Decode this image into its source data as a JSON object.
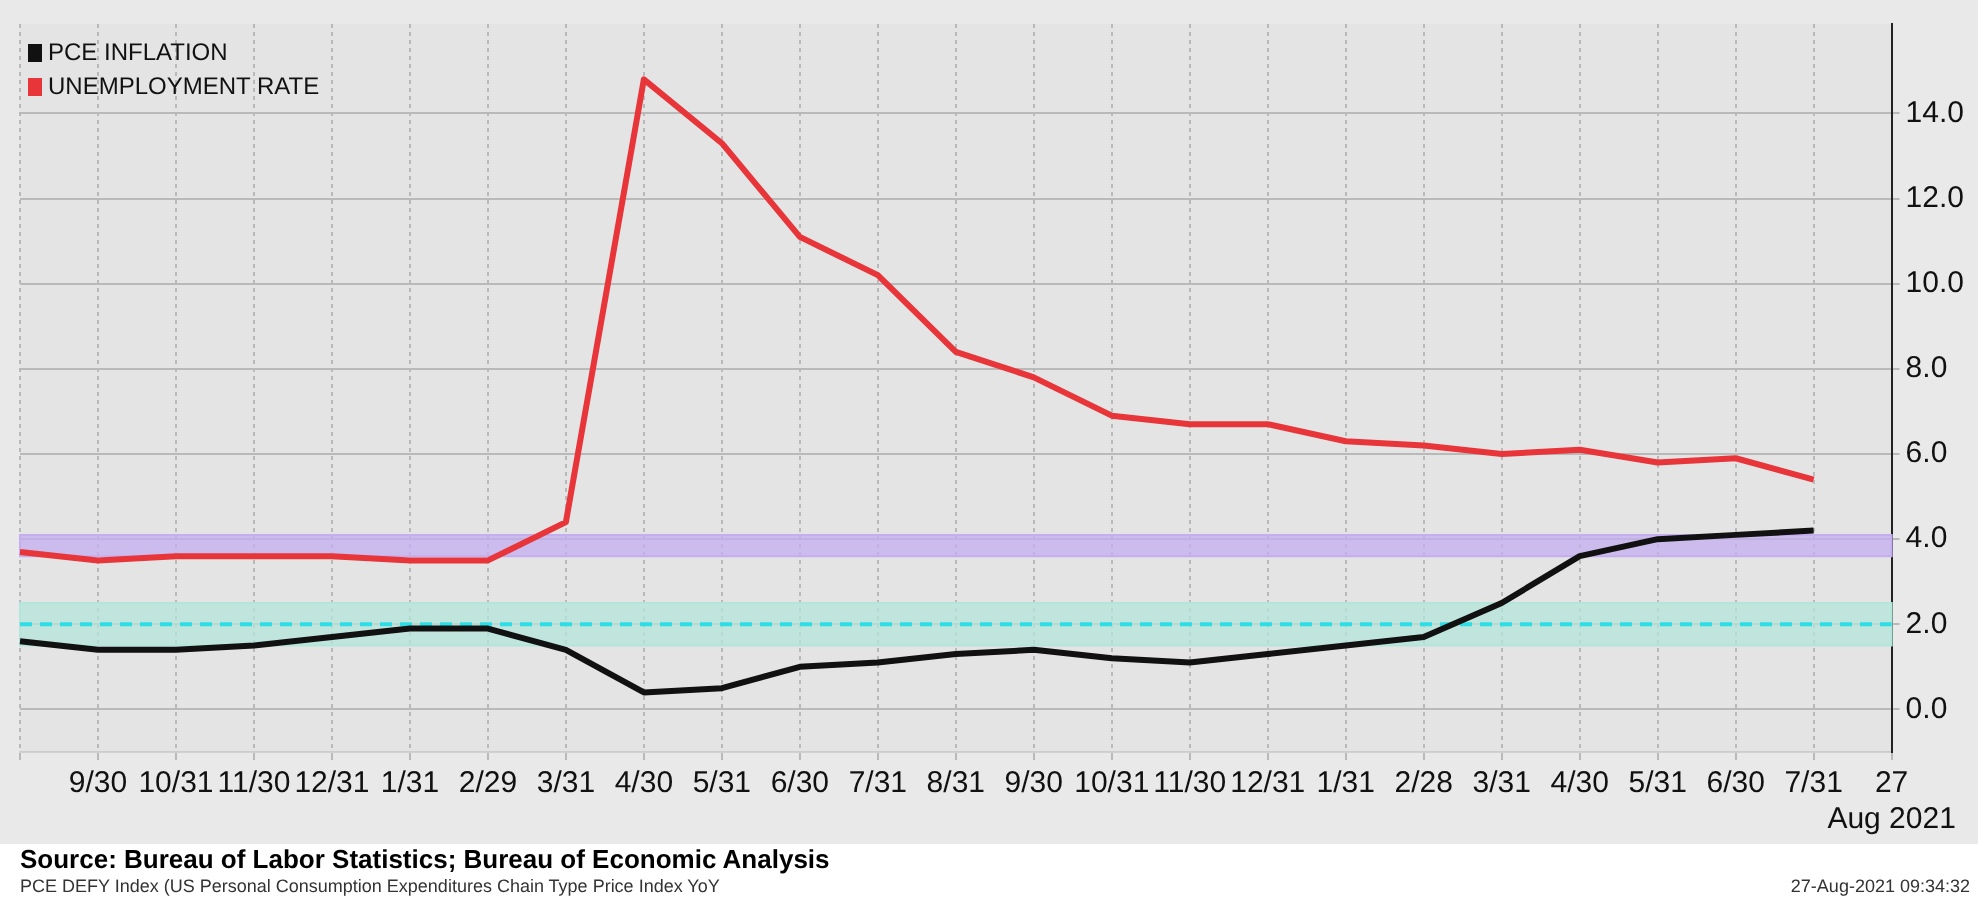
{
  "chart_data": {
    "type": "line",
    "categories": [
      null,
      "9/30",
      "10/31",
      "11/30",
      "12/31",
      "1/31",
      "2/29",
      "3/31",
      "4/30",
      "5/31",
      "6/30",
      "7/31",
      "8/31",
      "9/30",
      "10/31",
      "11/30",
      "12/31",
      "1/31",
      "2/28",
      "3/31",
      "4/30",
      "5/31",
      "6/30",
      "7/31",
      "27\nAug 2021"
    ],
    "series": [
      {
        "name": "PCE INFLATION",
        "color": "#111111",
        "values": [
          1.6,
          1.4,
          1.4,
          1.5,
          1.7,
          1.9,
          1.9,
          1.4,
          0.4,
          0.5,
          1.0,
          1.1,
          1.3,
          1.4,
          1.2,
          1.1,
          1.3,
          1.5,
          1.7,
          2.5,
          3.6,
          4.0,
          4.1,
          4.2,
          null
        ]
      },
      {
        "name": "UNEMPLOYMENT RATE",
        "color": "#e8353a",
        "values": [
          3.7,
          3.5,
          3.6,
          3.6,
          3.6,
          3.5,
          3.5,
          4.4,
          14.8,
          13.3,
          11.1,
          10.2,
          8.4,
          7.8,
          6.9,
          6.7,
          6.7,
          6.3,
          6.2,
          6.0,
          6.1,
          5.8,
          5.9,
          5.4,
          null
        ]
      }
    ],
    "ylim": [
      -1,
      16.1
    ],
    "yticks": [
      {
        "value": 0,
        "label": "0.0"
      },
      {
        "value": 2,
        "label": "2.0"
      },
      {
        "value": 4,
        "label": "4.0"
      },
      {
        "value": 6,
        "label": "6.0"
      },
      {
        "value": 8,
        "label": "8.0"
      },
      {
        "value": 10,
        "label": "10.0"
      },
      {
        "value": 12,
        "label": "12.0"
      },
      {
        "value": 14,
        "label": "14.0"
      }
    ],
    "bands": [
      {
        "axis": "y",
        "from": 3.6,
        "to": 4.1,
        "color": "#c4aef0"
      },
      {
        "axis": "y",
        "from": 1.5,
        "to": 2.5,
        "color": "#b3e6da"
      }
    ],
    "ref_lines": [
      {
        "axis": "y",
        "value": 2,
        "color": "#2fdde6",
        "line_style": "dashed"
      }
    ],
    "grid": true,
    "legend": "top left",
    "marker": "none",
    "line_style": "solid",
    "annotations": [
      "Source: Bureau of Labor Statistics; Bureau of Economic Analysis",
      "PCE DEFY Index (US Personal Consumption Expenditures Chain Type Price Index YoY",
      "27-Aug-2021 09:34:32"
    ]
  }
}
